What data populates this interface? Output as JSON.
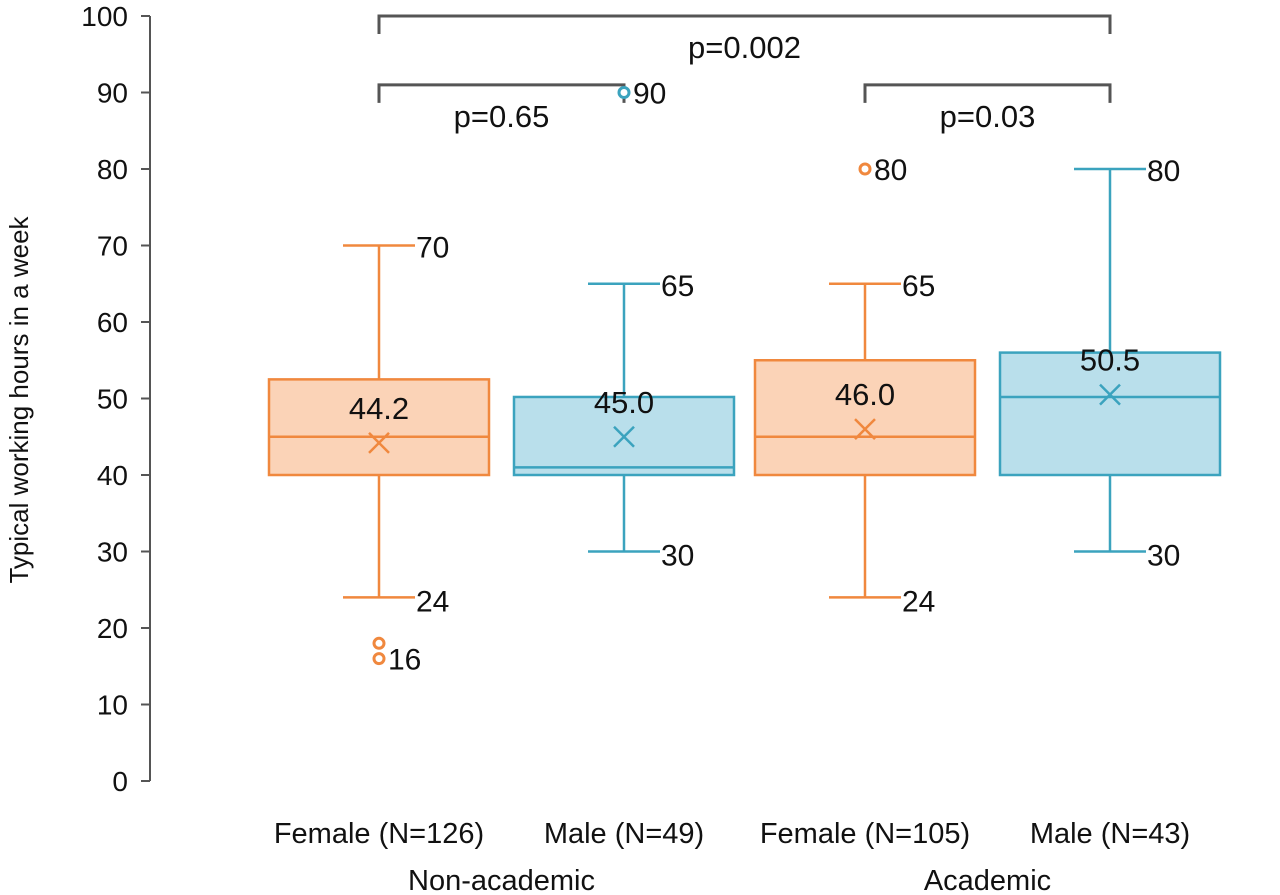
{
  "colors": {
    "female_stroke": "#F0883E",
    "female_fill": "#FBD3B7",
    "male_stroke": "#3BA3BE",
    "male_fill": "#B9DFEB",
    "axis": "#555555",
    "bracket": "#555555"
  },
  "chart_data": {
    "type": "box",
    "ylabel": "Typical working hours in a week",
    "ylim": [
      0,
      100
    ],
    "yticks": [
      "0",
      "10",
      "20",
      "30",
      "40",
      "50",
      "60",
      "70",
      "80",
      "90",
      "100"
    ],
    "grid": false,
    "groups": [
      {
        "name": "Non-academic",
        "categories": [
          "Female  (N=126)",
          "Male (N=49)"
        ]
      },
      {
        "name": "Academic",
        "categories": [
          "Female (N=105)",
          "Male (N=43)"
        ]
      }
    ],
    "boxes": [
      {
        "category": "Female  (N=126)",
        "group": "Non-academic",
        "sex": "female",
        "min": 24,
        "q1": 40,
        "median": 45,
        "q3": 52.5,
        "max": 70,
        "mean": 44.2,
        "mean_label": "44.2",
        "max_label": "70",
        "min_label": "24",
        "outliers": [
          18,
          16
        ],
        "outlier_labels": [
          "",
          "16"
        ]
      },
      {
        "category": "Male (N=49)",
        "group": "Non-academic",
        "sex": "male",
        "min": 30,
        "q1": 40,
        "median": 41,
        "q3": 50.2,
        "max": 65,
        "mean": 45.0,
        "mean_label": "45.0",
        "max_label": "65",
        "min_label": "30",
        "outliers": [
          90
        ],
        "outlier_labels": [
          "90"
        ]
      },
      {
        "category": "Female (N=105)",
        "group": "Academic",
        "sex": "female",
        "min": 24,
        "q1": 40,
        "median": 45,
        "q3": 55,
        "max": 65,
        "mean": 46.0,
        "mean_label": "46.0",
        "max_label": "65",
        "min_label": "24",
        "outliers": [
          80
        ],
        "outlier_labels": [
          "80"
        ]
      },
      {
        "category": "Male (N=43)",
        "group": "Academic",
        "sex": "male",
        "min": 30,
        "q1": 40,
        "median": 50.2,
        "q3": 56,
        "max": 80,
        "mean": 50.5,
        "mean_label": "50.5",
        "max_label": "80",
        "min_label": "30",
        "outliers": [],
        "outlier_labels": []
      }
    ],
    "comparisons": [
      {
        "from": 0,
        "to": 3,
        "label": "p=0.002",
        "level": 100
      },
      {
        "from": 0,
        "to": 1,
        "label": "p=0.65",
        "level": 91
      },
      {
        "from": 2,
        "to": 3,
        "label": "p=0.03",
        "level": 91
      }
    ]
  }
}
